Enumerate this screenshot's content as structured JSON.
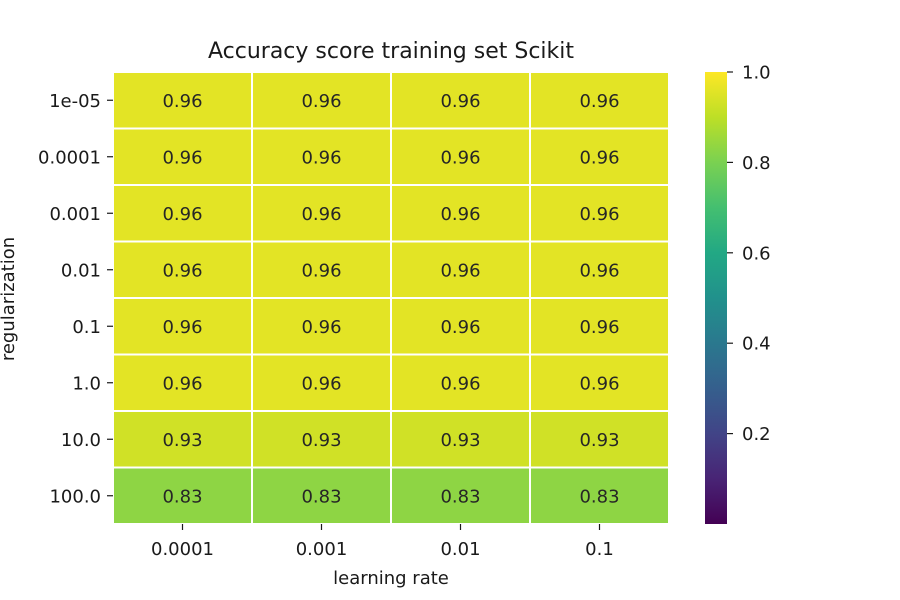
{
  "chart_data": {
    "type": "heatmap",
    "title": "Accuracy score training set Scikit",
    "xlabel": "learning rate",
    "ylabel": "regularization",
    "x_categories": [
      "0.0001",
      "0.001",
      "0.01",
      "0.1"
    ],
    "y_categories": [
      "1e-05",
      "0.0001",
      "0.001",
      "0.01",
      "0.1",
      "1.0",
      "10.0",
      "100.0"
    ],
    "values": [
      [
        0.96,
        0.96,
        0.96,
        0.96
      ],
      [
        0.96,
        0.96,
        0.96,
        0.96
      ],
      [
        0.96,
        0.96,
        0.96,
        0.96
      ],
      [
        0.96,
        0.96,
        0.96,
        0.96
      ],
      [
        0.96,
        0.96,
        0.96,
        0.96
      ],
      [
        0.96,
        0.96,
        0.96,
        0.96
      ],
      [
        0.93,
        0.93,
        0.93,
        0.93
      ],
      [
        0.83,
        0.83,
        0.83,
        0.83
      ]
    ],
    "colormap": "viridis",
    "vmin": 0.0,
    "vmax": 1.0,
    "colorbar_ticks": [
      0.2,
      0.4,
      0.6,
      0.8,
      1.0
    ],
    "colorbar_tick_labels": [
      "0.2",
      "0.4",
      "0.6",
      "0.8",
      "1.0"
    ],
    "grid_line_color": "#ffffff",
    "cell_text_color": "#262626",
    "annotated": true
  }
}
